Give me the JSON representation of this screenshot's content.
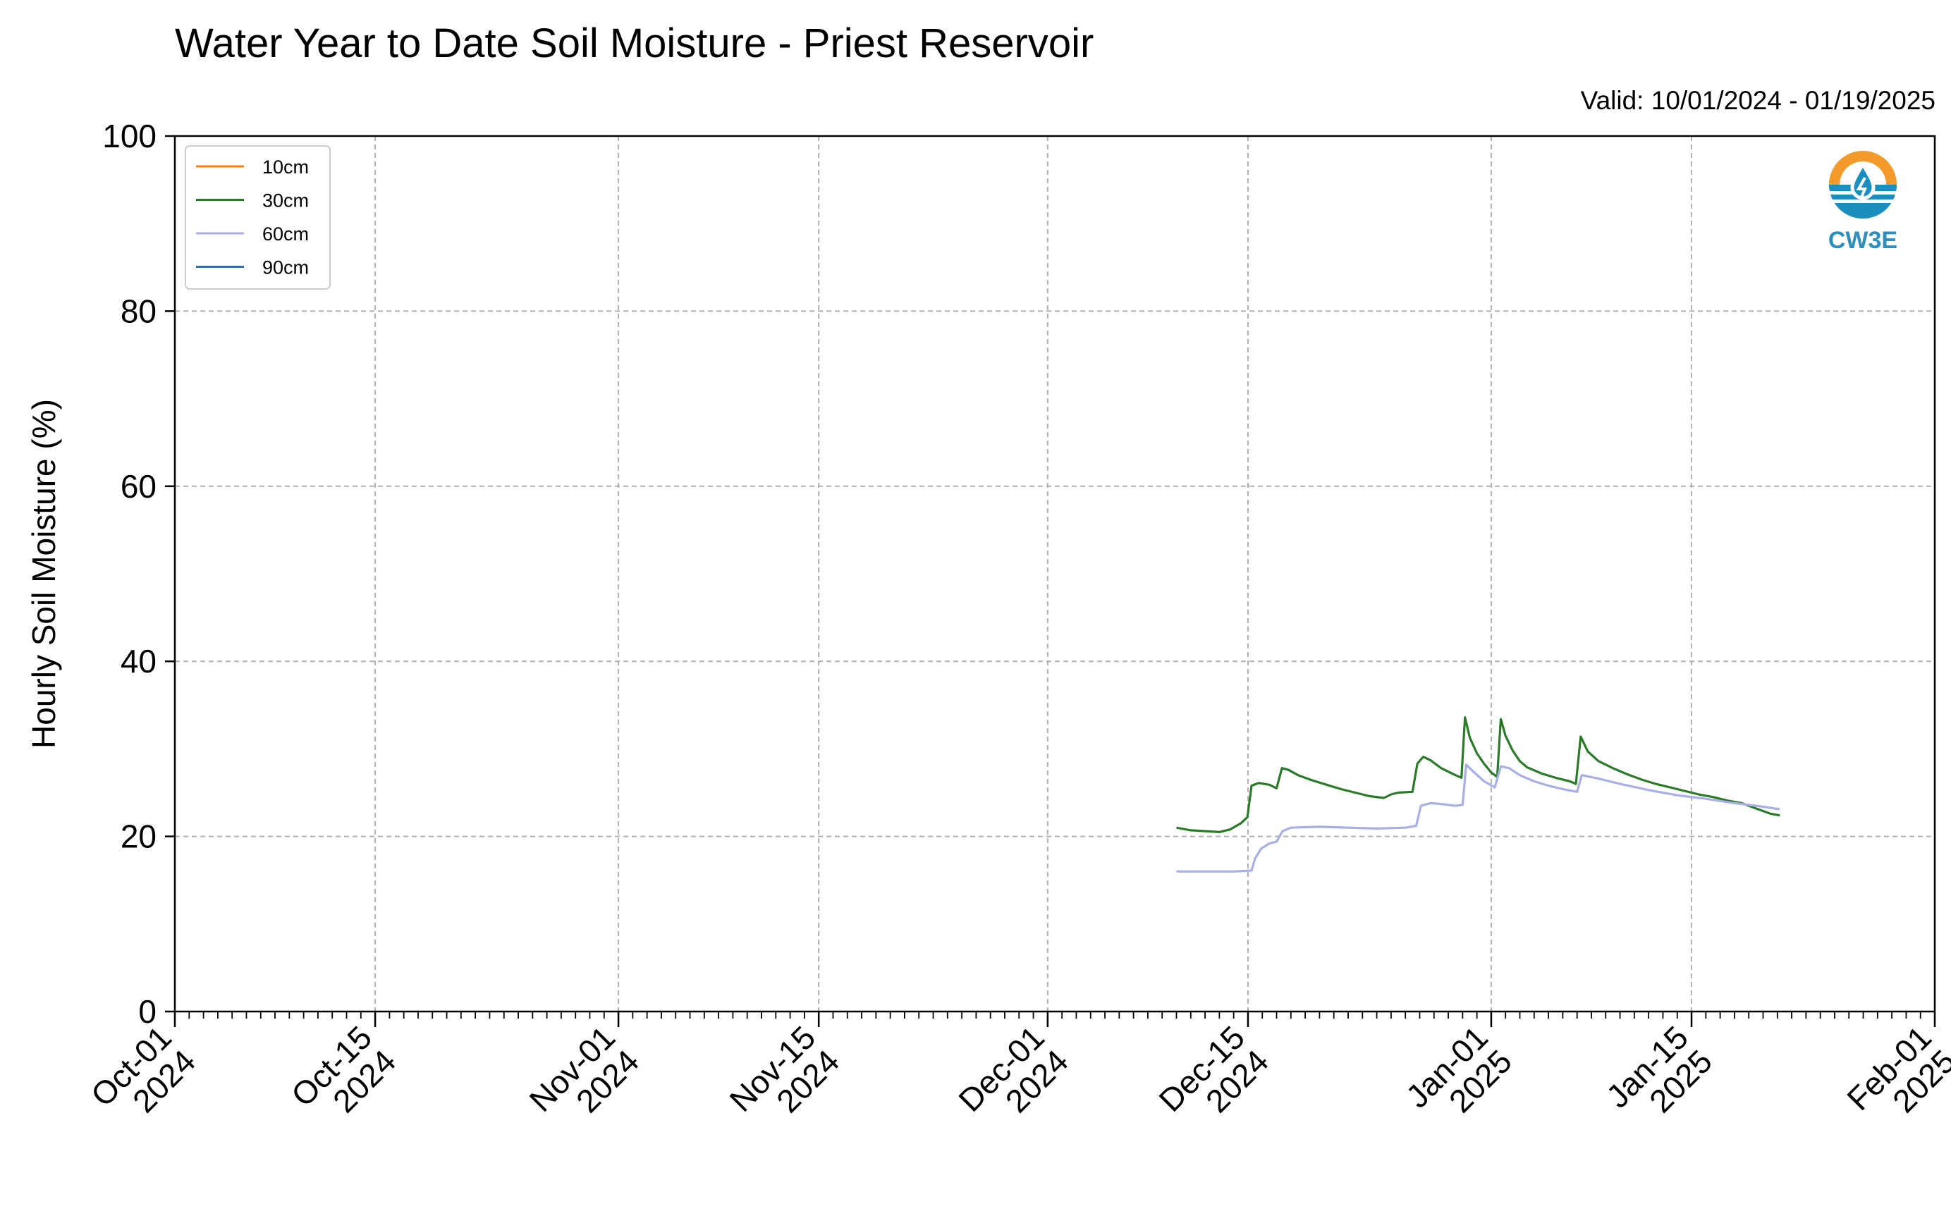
{
  "title": "Water Year to Date Soil Moisture - Priest Reservoir",
  "valid_label": "Valid: 10/01/2024 - 01/19/2025",
  "logo": {
    "text": "CW3E",
    "icon": "water-drop-logo-icon",
    "ring_color": "#f39a2b",
    "water_color": "#1a8fbf"
  },
  "chart_data": {
    "type": "line",
    "title": "Water Year to Date Soil Moisture - Priest Reservoir",
    "xlabel": "",
    "ylabel": "Hourly Soil Moisture (%)",
    "xlim": [
      "2024-10-01",
      "2025-02-01"
    ],
    "ylim": [
      0,
      100
    ],
    "yticks": [
      0,
      20,
      40,
      60,
      80,
      100
    ],
    "xticks": [
      {
        "date": "2024-10-01",
        "label1": "Oct-01",
        "label2": "2024"
      },
      {
        "date": "2024-10-15",
        "label1": "Oct-15",
        "label2": "2024"
      },
      {
        "date": "2024-11-01",
        "label1": "Nov-01",
        "label2": "2024"
      },
      {
        "date": "2024-11-15",
        "label1": "Nov-15",
        "label2": "2024"
      },
      {
        "date": "2024-12-01",
        "label1": "Dec-01",
        "label2": "2024"
      },
      {
        "date": "2024-12-15",
        "label1": "Dec-15",
        "label2": "2024"
      },
      {
        "date": "2025-01-01",
        "label1": "Jan-01",
        "label2": "2025"
      },
      {
        "date": "2025-01-15",
        "label1": "Jan-15",
        "label2": "2025"
      },
      {
        "date": "2025-02-01",
        "label1": "Feb-01",
        "label2": "2025"
      }
    ],
    "grid": true,
    "legend_position": "top-left",
    "series": [
      {
        "name": "10cm",
        "color": "#ff7f0e",
        "points": []
      },
      {
        "name": "30cm",
        "color": "#2a7a2a",
        "points": [
          [
            "2024-12-10T00:00",
            21.0
          ],
          [
            "2024-12-11T00:00",
            20.7
          ],
          [
            "2024-12-12T00:00",
            20.6
          ],
          [
            "2024-12-13T00:00",
            20.5
          ],
          [
            "2024-12-13T18:00",
            20.8
          ],
          [
            "2024-12-14T12:00",
            21.5
          ],
          [
            "2024-12-14T23:00",
            22.2
          ],
          [
            "2024-12-15T06:00",
            25.8
          ],
          [
            "2024-12-15T18:00",
            26.1
          ],
          [
            "2024-12-16T12:00",
            25.9
          ],
          [
            "2024-12-17T00:00",
            25.5
          ],
          [
            "2024-12-17T09:00",
            27.8
          ],
          [
            "2024-12-17T20:00",
            27.6
          ],
          [
            "2024-12-18T12:00",
            27.0
          ],
          [
            "2024-12-19T12:00",
            26.4
          ],
          [
            "2024-12-20T12:00",
            25.9
          ],
          [
            "2024-12-21T12:00",
            25.4
          ],
          [
            "2024-12-22T12:00",
            25.0
          ],
          [
            "2024-12-23T12:00",
            24.6
          ],
          [
            "2024-12-24T12:00",
            24.4
          ],
          [
            "2024-12-25T00:00",
            24.8
          ],
          [
            "2024-12-25T12:00",
            25.0
          ],
          [
            "2024-12-26T12:00",
            25.1
          ],
          [
            "2024-12-26T20:00",
            28.3
          ],
          [
            "2024-12-27T06:00",
            29.1
          ],
          [
            "2024-12-27T18:00",
            28.7
          ],
          [
            "2024-12-28T12:00",
            27.8
          ],
          [
            "2024-12-29T12:00",
            27.0
          ],
          [
            "2024-12-29T22:00",
            26.7
          ],
          [
            "2024-12-30T04:00",
            33.6
          ],
          [
            "2024-12-30T12:00",
            31.3
          ],
          [
            "2024-12-31T00:00",
            29.5
          ],
          [
            "2024-12-31T12:00",
            28.3
          ],
          [
            "2025-01-01T00:00",
            27.3
          ],
          [
            "2025-01-01T10:00",
            26.8
          ],
          [
            "2025-01-01T16:00",
            33.4
          ],
          [
            "2025-01-02T00:00",
            31.5
          ],
          [
            "2025-01-02T12:00",
            29.8
          ],
          [
            "2025-01-03T00:00",
            28.6
          ],
          [
            "2025-01-03T12:00",
            27.9
          ],
          [
            "2025-01-04T12:00",
            27.2
          ],
          [
            "2025-01-05T12:00",
            26.7
          ],
          [
            "2025-01-06T12:00",
            26.3
          ],
          [
            "2025-01-06T22:00",
            26.0
          ],
          [
            "2025-01-07T06:00",
            31.4
          ],
          [
            "2025-01-07T18:00",
            29.7
          ],
          [
            "2025-01-08T12:00",
            28.6
          ],
          [
            "2025-01-09T12:00",
            27.8
          ],
          [
            "2025-01-10T12:00",
            27.1
          ],
          [
            "2025-01-11T12:00",
            26.5
          ],
          [
            "2025-01-12T12:00",
            26.0
          ],
          [
            "2025-01-13T12:00",
            25.6
          ],
          [
            "2025-01-14T12:00",
            25.2
          ],
          [
            "2025-01-15T12:00",
            24.8
          ],
          [
            "2025-01-16T12:00",
            24.5
          ],
          [
            "2025-01-17T12:00",
            24.1
          ],
          [
            "2025-01-18T12:00",
            23.8
          ],
          [
            "2025-01-19T12:00",
            23.2
          ],
          [
            "2025-01-20T12:00",
            22.6
          ],
          [
            "2025-01-21T04:00",
            22.4
          ]
        ]
      },
      {
        "name": "60cm",
        "color": "#a8aee6",
        "points": [
          [
            "2024-12-10T00:00",
            16.0
          ],
          [
            "2024-12-12T00:00",
            16.0
          ],
          [
            "2024-12-14T00:00",
            16.0
          ],
          [
            "2024-12-15T06:00",
            16.1
          ],
          [
            "2024-12-15T12:00",
            17.5
          ],
          [
            "2024-12-15T22:00",
            18.6
          ],
          [
            "2024-12-16T12:00",
            19.2
          ],
          [
            "2024-12-17T00:00",
            19.4
          ],
          [
            "2024-12-17T10:00",
            20.6
          ],
          [
            "2024-12-18T00:00",
            21.0
          ],
          [
            "2024-12-20T00:00",
            21.1
          ],
          [
            "2024-12-22T00:00",
            21.0
          ],
          [
            "2024-12-24T00:00",
            20.9
          ],
          [
            "2024-12-26T00:00",
            21.0
          ],
          [
            "2024-12-26T18:00",
            21.2
          ],
          [
            "2024-12-27T02:00",
            23.5
          ],
          [
            "2024-12-27T18:00",
            23.8
          ],
          [
            "2024-12-28T12:00",
            23.7
          ],
          [
            "2024-12-29T12:00",
            23.5
          ],
          [
            "2024-12-30T00:00",
            23.6
          ],
          [
            "2024-12-30T06:00",
            28.2
          ],
          [
            "2024-12-30T18:00",
            27.4
          ],
          [
            "2024-12-31T12:00",
            26.3
          ],
          [
            "2025-01-01T06:00",
            25.6
          ],
          [
            "2025-01-01T16:00",
            28.0
          ],
          [
            "2025-01-02T06:00",
            27.8
          ],
          [
            "2025-01-03T00:00",
            27.0
          ],
          [
            "2025-01-04T00:00",
            26.3
          ],
          [
            "2025-01-05T00:00",
            25.8
          ],
          [
            "2025-01-06T00:00",
            25.4
          ],
          [
            "2025-01-07T00:00",
            25.1
          ],
          [
            "2025-01-07T08:00",
            27.0
          ],
          [
            "2025-01-08T12:00",
            26.6
          ],
          [
            "2025-01-10T00:00",
            26.0
          ],
          [
            "2025-01-12T00:00",
            25.3
          ],
          [
            "2025-01-14T00:00",
            24.7
          ],
          [
            "2025-01-16T00:00",
            24.3
          ],
          [
            "2025-01-18T00:00",
            23.8
          ],
          [
            "2025-01-20T00:00",
            23.4
          ],
          [
            "2025-01-21T04:00",
            23.1
          ]
        ]
      },
      {
        "name": "90cm",
        "color": "#2b6fc4",
        "points": []
      }
    ]
  }
}
